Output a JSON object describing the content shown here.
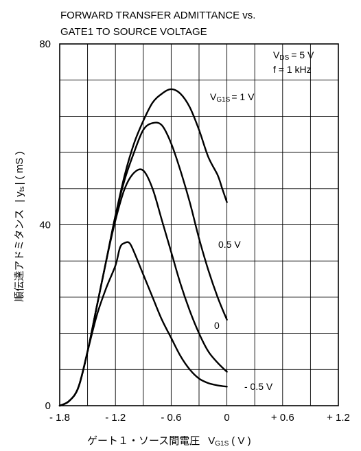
{
  "chart_data": {
    "type": "line",
    "title_line1": "FORWARD TRANSFER ADMITTANCE vs.",
    "title_line2": "GATE1 TO SOURCE VOLTAGE",
    "xlabel_text": "ゲート１・ソース間電圧",
    "xlabel_symbol": "V",
    "xlabel_sub": "G1S",
    "xlabel_unit": "( V )",
    "ylabel_text": "順伝達アドミタンス",
    "ylabel_symbol": "| y",
    "ylabel_sub": "ts",
    "ylabel_unit": "|  ( mS )",
    "xlim": [
      -1.8,
      1.2
    ],
    "ylim": [
      0,
      80
    ],
    "x_ticks": [
      {
        "value": -1.8,
        "label": "- 1.8"
      },
      {
        "value": -1.2,
        "label": "- 1.2"
      },
      {
        "value": -0.6,
        "label": "- 0.6"
      },
      {
        "value": 0,
        "label": "0"
      },
      {
        "value": 0.6,
        "label": "+ 0.6"
      },
      {
        "value": 1.2,
        "label": "+ 1.2"
      }
    ],
    "y_ticks": [
      {
        "value": 0,
        "label": "0"
      },
      {
        "value": 40,
        "label": "40"
      },
      {
        "value": 80,
        "label": "80"
      }
    ],
    "grid": true,
    "conditions": {
      "vds_symbol": "V",
      "vds_sub": "DS",
      "vds_value": "= 5 V",
      "freq": "f = 1 kHz"
    },
    "series": [
      {
        "name": "1 V",
        "label_symbol": "V",
        "label_sub": "G1S",
        "label_value": "= 1 V",
        "x": [
          -1.8,
          -1.7,
          -1.6,
          -1.5,
          -1.4,
          -1.3,
          -1.2,
          -1.1,
          -1.0,
          -0.9,
          -0.8,
          -0.7,
          -0.6,
          -0.5,
          -0.4,
          -0.3,
          -0.2,
          -0.1,
          -0.05,
          0.0
        ],
        "y": [
          0,
          1,
          4,
          12,
          22,
          32,
          42,
          51,
          58,
          63,
          67,
          69,
          70,
          69,
          66,
          61,
          55,
          51,
          48,
          45
        ]
      },
      {
        "name": "0.5 V",
        "label_value": "0.5 V",
        "x": [
          -1.8,
          -1.7,
          -1.6,
          -1.5,
          -1.4,
          -1.3,
          -1.2,
          -1.1,
          -1.0,
          -0.9,
          -0.8,
          -0.7,
          -0.6,
          -0.5,
          -0.4,
          -0.3,
          -0.2,
          -0.1,
          0.0
        ],
        "y": [
          0,
          1,
          4,
          12,
          22,
          32,
          42,
          50,
          56,
          61,
          62.5,
          62,
          58,
          52,
          45,
          37,
          30,
          24,
          19
        ]
      },
      {
        "name": "0",
        "label_value": "0",
        "x": [
          -1.8,
          -1.7,
          -1.6,
          -1.5,
          -1.4,
          -1.3,
          -1.2,
          -1.1,
          -1.0,
          -0.9,
          -0.8,
          -0.7,
          -0.6,
          -0.5,
          -0.4,
          -0.3,
          -0.2,
          -0.1,
          0.0
        ],
        "y": [
          0,
          1,
          4,
          12,
          22,
          32,
          41,
          48,
          51.5,
          52,
          48,
          41,
          34,
          27,
          21,
          16,
          12,
          9.5,
          7.5
        ]
      },
      {
        "name": "- 0.5 V",
        "label_value": "- 0.5 V",
        "x": [
          -1.8,
          -1.7,
          -1.6,
          -1.5,
          -1.4,
          -1.3,
          -1.2,
          -1.15,
          -1.1,
          -1.05,
          -1.0,
          -0.9,
          -0.8,
          -0.7,
          -0.6,
          -0.5,
          -0.4,
          -0.3,
          -0.2,
          -0.1,
          0.0
        ],
        "y": [
          0,
          1,
          4,
          12,
          20,
          26,
          31,
          35,
          36,
          36,
          34,
          29,
          24,
          19,
          15,
          11,
          8,
          6,
          5,
          4.5,
          4.2
        ]
      }
    ]
  }
}
